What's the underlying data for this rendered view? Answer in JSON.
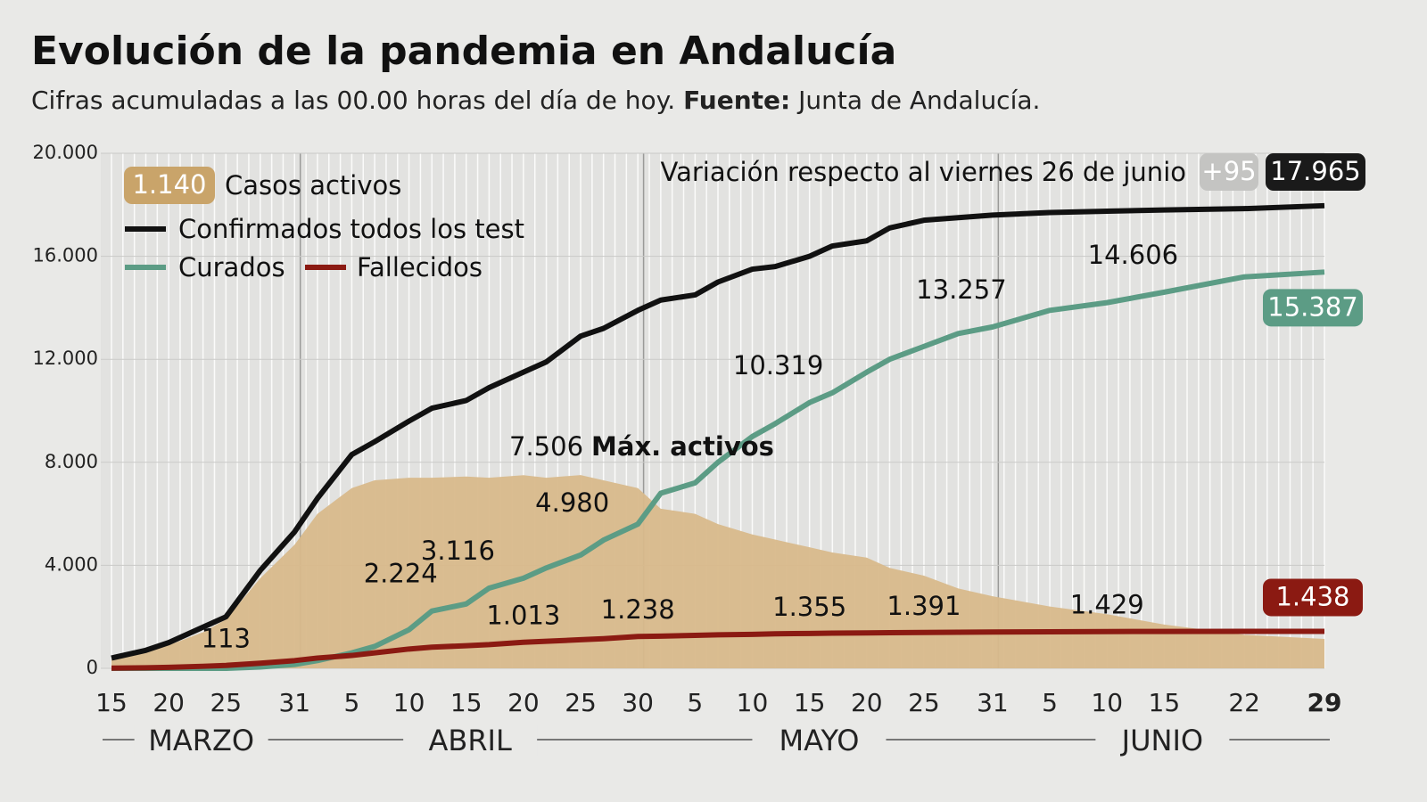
{
  "chart_data": {
    "type": "line",
    "title": "Evolución de la pandemia en Andalucía",
    "subtitle": {
      "text": "Cifras acumuladas a las 00.00 horas del día de hoy.",
      "source_label": "Fuente:",
      "source": "Junta de Andalucía."
    },
    "annotations": {
      "max_active": "Máx. activos",
      "variation": "Variación respecto al viernes 26 de junio",
      "variation_value": "+95"
    },
    "x": [
      0,
      3,
      5,
      8,
      10,
      13,
      16,
      18,
      21,
      23,
      26,
      28,
      31,
      33,
      36,
      38,
      41,
      43,
      46,
      48,
      51,
      53,
      56,
      58,
      61,
      63,
      66,
      68,
      71,
      74,
      77,
      82,
      87,
      92,
      99,
      106
    ],
    "xlim": [
      0,
      106
    ],
    "xticks": [
      {
        "value": 0,
        "label": "15"
      },
      {
        "value": 5,
        "label": "20"
      },
      {
        "value": 10,
        "label": "25"
      },
      {
        "value": 16,
        "label": "31"
      },
      {
        "value": 21,
        "label": "5"
      },
      {
        "value": 26,
        "label": "10"
      },
      {
        "value": 31,
        "label": "15"
      },
      {
        "value": 36,
        "label": "20"
      },
      {
        "value": 41,
        "label": "25"
      },
      {
        "value": 46,
        "label": "30"
      },
      {
        "value": 51,
        "label": "5"
      },
      {
        "value": 56,
        "label": "10"
      },
      {
        "value": 61,
        "label": "15"
      },
      {
        "value": 66,
        "label": "20"
      },
      {
        "value": 71,
        "label": "25"
      },
      {
        "value": 77,
        "label": "31"
      },
      {
        "value": 82,
        "label": "5"
      },
      {
        "value": 87,
        "label": "10"
      },
      {
        "value": 92,
        "label": "15"
      },
      {
        "value": 99,
        "label": "22"
      },
      {
        "value": 106,
        "label": "29"
      }
    ],
    "months": [
      {
        "label": "MARZO",
        "from": 0,
        "to": 16
      },
      {
        "label": "ABRIL",
        "from": 17,
        "to": 46
      },
      {
        "label": "MAYO",
        "from": 47,
        "to": 77
      },
      {
        "label": "JUNIO",
        "from": 78,
        "to": 106
      }
    ],
    "ylim": [
      0,
      20000
    ],
    "yticks": [
      0,
      {
        "value": 4000,
        "label": "4.000"
      },
      {
        "value": 8000,
        "label": "8.000"
      },
      {
        "value": 12000,
        "label": "12.000"
      },
      {
        "value": 16000,
        "label": "16.000"
      },
      {
        "value": 20000,
        "label": "20.000"
      }
    ],
    "series": [
      {
        "name": "Casos activos",
        "color": "#d8b98b",
        "style": "area",
        "values": [
          350,
          600,
          900,
          1400,
          1900,
          3500,
          4800,
          6000,
          7000,
          7300,
          7400,
          7400,
          7450,
          7400,
          7500,
          7400,
          7506,
          7300,
          7000,
          6200,
          6000,
          5600,
          5200,
          5000,
          4700,
          4500,
          4300,
          3900,
          3600,
          3100,
          2800,
          2400,
          2100,
          1700,
          1300,
          1140
        ],
        "value_labels": [
          null,
          null,
          null,
          null,
          null,
          null,
          null,
          null,
          null,
          null,
          null,
          null,
          null,
          null,
          null,
          null,
          "7.506",
          null,
          null,
          null,
          null,
          null,
          null,
          null,
          null,
          null,
          null,
          null,
          null,
          null,
          null,
          null,
          null,
          null,
          null,
          "1.140"
        ]
      },
      {
        "name": "Confirmados todos los test",
        "color": "#111111",
        "style": "line",
        "values": [
          400,
          700,
          1000,
          1600,
          2000,
          3800,
          5300,
          6600,
          8300,
          8800,
          9600,
          10100,
          10400,
          10900,
          11500,
          11900,
          12900,
          13200,
          13900,
          14300,
          14500,
          15000,
          15500,
          15600,
          16000,
          16400,
          16600,
          17100,
          17400,
          17500,
          17600,
          17700,
          17750,
          17800,
          17850,
          17965
        ],
        "value_labels": [
          null,
          null,
          null,
          null,
          null,
          null,
          null,
          null,
          null,
          null,
          null,
          null,
          null,
          null,
          null,
          null,
          null,
          null,
          null,
          null,
          null,
          null,
          null,
          null,
          null,
          null,
          null,
          null,
          null,
          null,
          null,
          null,
          null,
          null,
          null,
          "17.965"
        ]
      },
      {
        "name": "Curados",
        "color": "#5c9c85",
        "style": "line",
        "values": [
          0,
          0,
          0,
          0,
          0,
          50,
          150,
          300,
          600,
          850,
          1500,
          2224,
          2500,
          3116,
          3500,
          3900,
          4400,
          4980,
          5600,
          6800,
          7200,
          8000,
          9000,
          9500,
          10319,
          10700,
          11500,
          12000,
          12500,
          13000,
          13257,
          13900,
          14200,
          14606,
          15200,
          15387
        ],
        "value_labels": [
          null,
          null,
          null,
          null,
          null,
          null,
          null,
          null,
          null,
          null,
          null,
          "2.224",
          null,
          "3.116",
          null,
          null,
          null,
          "4.980",
          null,
          null,
          null,
          null,
          null,
          null,
          "10.319",
          null,
          null,
          null,
          null,
          null,
          "13.257",
          null,
          null,
          "14.606",
          null,
          "15.387"
        ]
      },
      {
        "name": "Fallecidos",
        "color": "#8b1a12",
        "style": "line",
        "values": [
          10,
          20,
          40,
          80,
          113,
          200,
          300,
          400,
          500,
          600,
          750,
          820,
          880,
          920,
          1013,
          1050,
          1110,
          1150,
          1238,
          1250,
          1280,
          1300,
          1320,
          1340,
          1355,
          1365,
          1375,
          1382,
          1391,
          1400,
          1410,
          1420,
          1429,
          1432,
          1435,
          1438
        ],
        "value_labels": [
          null,
          null,
          null,
          null,
          "113",
          null,
          null,
          null,
          null,
          null,
          null,
          null,
          null,
          null,
          "1.013",
          null,
          null,
          null,
          "1.238",
          null,
          null,
          null,
          null,
          null,
          "1.355",
          null,
          null,
          null,
          "1.391",
          null,
          null,
          null,
          "1.429",
          null,
          null,
          "1.438"
        ]
      }
    ]
  }
}
